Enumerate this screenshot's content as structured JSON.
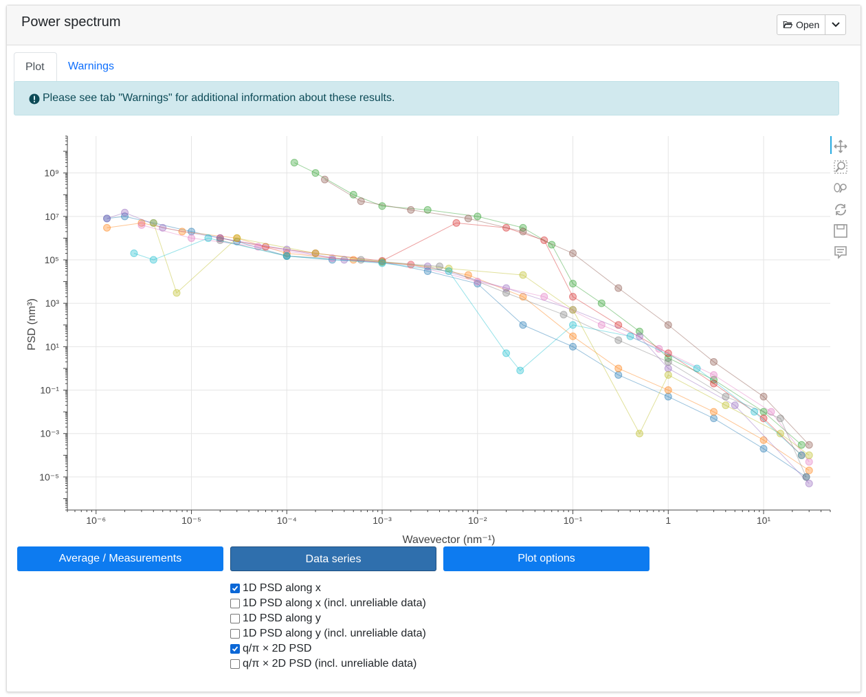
{
  "header": {
    "title": "Power spectrum",
    "open_label": "Open"
  },
  "tabs": [
    {
      "label": "Plot",
      "active": true
    },
    {
      "label": "Warnings",
      "active": false
    }
  ],
  "alert": {
    "text": "Please see tab \"Warnings\" for additional information about these results."
  },
  "toolbar": {
    "icons": [
      "pan-icon",
      "box-zoom-icon",
      "wheel-zoom-icon",
      "reset-icon",
      "save-icon",
      "hover-icon"
    ]
  },
  "buttons": {
    "average": "Average / Measurements",
    "series": "Data series",
    "plot_options": "Plot options"
  },
  "checkboxes": [
    {
      "label": "1D PSD along x",
      "checked": true
    },
    {
      "label": "1D PSD along x (incl. unreliable data)",
      "checked": false
    },
    {
      "label": "1D PSD along y",
      "checked": false
    },
    {
      "label": "1D PSD along y (incl. unreliable data)",
      "checked": false
    },
    {
      "label": "q/π × 2D PSD",
      "checked": true
    },
    {
      "label": "q/π × 2D PSD (incl. unreliable data)",
      "checked": false
    }
  ],
  "chart_data": {
    "type": "scatter",
    "x_scale": "log",
    "y_scale": "log",
    "xlabel": "Wavevector (nm⁻¹)",
    "ylabel": "PSD (nm³)",
    "xlim": [
      5e-07,
      50
    ],
    "ylim": [
      3e-07,
      50000000000.0
    ],
    "x_tick_labels": [
      "10⁻⁶",
      "10⁻⁵",
      "10⁻⁴",
      "10⁻³",
      "10⁻²",
      "10⁻¹",
      "1",
      "10¹"
    ],
    "y_tick_labels": [
      "10⁹",
      "10⁷",
      "10⁵",
      "10³",
      "10¹",
      "10⁻¹",
      "10⁻³",
      "10⁻⁵"
    ],
    "grid": true,
    "legend": "none",
    "series": [
      {
        "color": "#1f77b4",
        "points": [
          [
            1.3e-06,
            8000000.0
          ],
          [
            2e-06,
            10000000.0
          ],
          [
            4e-06,
            5000000.0
          ],
          [
            1e-05,
            2000000.0
          ],
          [
            3e-05,
            700000.0
          ],
          [
            0.0001,
            150000.0
          ],
          [
            0.0003,
            100000.0
          ],
          [
            0.001,
            80000.0
          ],
          [
            0.003,
            30000.0
          ],
          [
            0.01,
            8000.0
          ],
          [
            0.03,
            100.0
          ],
          [
            0.1,
            10.0
          ],
          [
            0.3,
            0.5
          ],
          [
            1,
            0.05
          ],
          [
            3,
            0.005
          ],
          [
            10,
            0.0002
          ],
          [
            28,
            1e-05
          ]
        ]
      },
      {
        "color": "#ff7f0e",
        "points": [
          [
            1.3e-06,
            3000000.0
          ],
          [
            3e-06,
            5000000.0
          ],
          [
            8e-06,
            2000000.0
          ],
          [
            3e-05,
            1000000.0
          ],
          [
            0.0001,
            200000.0
          ],
          [
            0.0005,
            100000.0
          ],
          [
            0.002,
            60000.0
          ],
          [
            0.008,
            20000.0
          ],
          [
            0.03,
            2000.0
          ],
          [
            0.1,
            30.0
          ],
          [
            0.3,
            1
          ],
          [
            1,
            0.1
          ],
          [
            3,
            0.01
          ],
          [
            10,
            0.0005
          ],
          [
            30,
            2e-05
          ]
        ]
      },
      {
        "color": "#2ca02c",
        "points": [
          [
            0.00012,
            3000000000.0
          ],
          [
            0.0002,
            1000000000.0
          ],
          [
            0.0005,
            100000000.0
          ],
          [
            0.001,
            30000000.0
          ],
          [
            0.003,
            20000000.0
          ],
          [
            0.01,
            10000000.0
          ],
          [
            0.03,
            3000000.0
          ],
          [
            0.06,
            500000.0
          ],
          [
            0.1,
            8000.0
          ],
          [
            0.2,
            1000.0
          ],
          [
            0.5,
            50
          ],
          [
            1,
            3
          ],
          [
            3,
            0.3
          ],
          [
            10,
            0.01
          ],
          [
            25,
            0.0003
          ]
        ]
      },
      {
        "color": "#d62728",
        "points": [
          [
            2e-05,
            1000000.0
          ],
          [
            6e-05,
            400000.0
          ],
          [
            0.0002,
            200000.0
          ],
          [
            0.001,
            90000.0
          ],
          [
            0.006,
            5000000.0
          ],
          [
            0.02,
            3000000.0
          ],
          [
            0.05,
            800000.0
          ],
          [
            0.1,
            2000.0
          ],
          [
            0.3,
            100.0
          ],
          [
            1,
            5
          ],
          [
            3,
            0.2
          ],
          [
            10,
            0.005
          ],
          [
            25,
            0.0001
          ]
        ]
      },
      {
        "color": "#9467bd",
        "points": [
          [
            1.3e-06,
            8000000.0
          ],
          [
            2e-06,
            15000000.0
          ],
          [
            5e-06,
            3000000.0
          ],
          [
            2e-05,
            1000000.0
          ],
          [
            0.0001,
            300000.0
          ],
          [
            0.0004,
            100000.0
          ],
          [
            0.003,
            50000.0
          ],
          [
            0.02,
            5000.0
          ],
          [
            0.1,
            500.0
          ],
          [
            0.5,
            30
          ],
          [
            1,
            1
          ],
          [
            5,
            0.02
          ],
          [
            30,
            5e-06
          ]
        ]
      },
      {
        "color": "#8c564b",
        "points": [
          [
            0.00025,
            500000000.0
          ],
          [
            0.0006,
            50000000.0
          ],
          [
            0.002,
            20000000.0
          ],
          [
            0.008,
            8000000.0
          ],
          [
            0.03,
            2000000.0
          ],
          [
            0.1,
            200000.0
          ],
          [
            0.3,
            5000.0
          ],
          [
            1,
            100.0
          ],
          [
            3,
            2
          ],
          [
            10,
            0.05
          ],
          [
            30,
            0.0003
          ]
        ]
      },
      {
        "color": "#e377c2",
        "points": [
          [
            3e-06,
            4000000.0
          ],
          [
            1e-05,
            1000000.0
          ],
          [
            5e-05,
            400000.0
          ],
          [
            0.0003,
            120000.0
          ],
          [
            0.002,
            60000.0
          ],
          [
            0.01,
            10000.0
          ],
          [
            0.05,
            2000.0
          ],
          [
            0.2,
            100.0
          ],
          [
            0.8,
            8
          ],
          [
            3,
            0.5
          ],
          [
            12,
            0.01
          ],
          [
            30,
            5e-05
          ]
        ]
      },
      {
        "color": "#7f7f7f",
        "points": [
          [
            2e-05,
            800000.0
          ],
          [
            0.0001,
            150000.0
          ],
          [
            0.0006,
            100000.0
          ],
          [
            0.004,
            50000.0
          ],
          [
            0.02,
            3000.0
          ],
          [
            0.08,
            300.0
          ],
          [
            0.3,
            20
          ],
          [
            1,
            2
          ],
          [
            4,
            0.05
          ],
          [
            15,
            0.005
          ],
          [
            28,
            1e-05
          ]
        ]
      },
      {
        "color": "#bcbd22",
        "points": [
          [
            4e-06,
            5000000.0
          ],
          [
            7e-06,
            3000.0
          ],
          [
            3e-05,
            1000000.0
          ],
          [
            0.0002,
            200000.0
          ],
          [
            0.001,
            80000.0
          ],
          [
            0.005,
            40000.0
          ],
          [
            0.03,
            20000.0
          ],
          [
            0.1,
            500.0
          ],
          [
            0.5,
            0.001
          ],
          [
            1,
            0.5
          ],
          [
            4,
            0.02
          ],
          [
            15,
            0.001
          ],
          [
            30,
            0.0001
          ]
        ]
      },
      {
        "color": "#17becf",
        "points": [
          [
            2.5e-06,
            200000.0
          ],
          [
            4e-06,
            100000.0
          ],
          [
            1.5e-05,
            1000000.0
          ],
          [
            0.0001,
            150000.0
          ],
          [
            0.001,
            70000.0
          ],
          [
            0.005,
            30000.0
          ],
          [
            0.02,
            5
          ],
          [
            0.028,
            0.8
          ],
          [
            0.1,
            100.0
          ],
          [
            0.4,
            30.0
          ],
          [
            2,
            1
          ],
          [
            8,
            0.01
          ],
          [
            25,
            0.0001
          ]
        ]
      }
    ]
  }
}
